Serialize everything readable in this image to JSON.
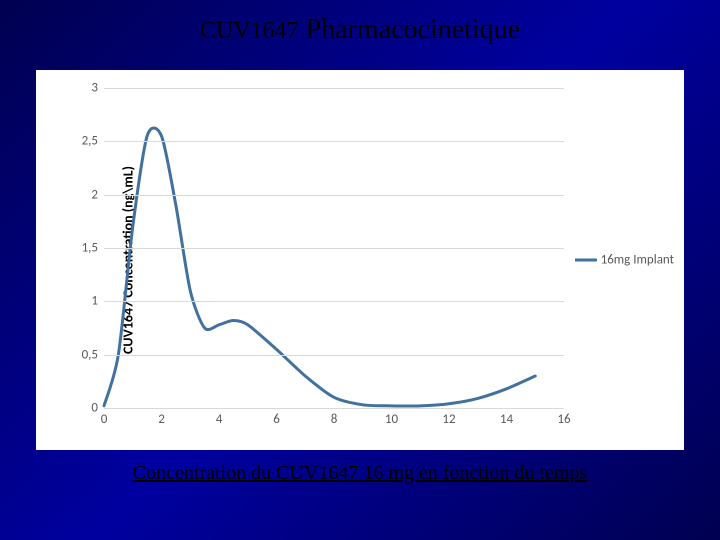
{
  "title": {
    "part1": "CUV1647",
    "part2": "Pharmacocinetique"
  },
  "chart": {
    "type": "line",
    "ylabel": "CUV1647 Concentration (ng\\mL)",
    "ylim": [
      0,
      3
    ],
    "ytick_step": 0.5,
    "yticks": [
      0,
      0.5,
      1,
      1.5,
      2,
      2.5,
      3
    ],
    "ytick_labels": [
      "0",
      "0,5",
      "1",
      "1,5",
      "2",
      "2,5",
      "3"
    ],
    "xlim": [
      0,
      16
    ],
    "xtick_step": 2,
    "xticks": [
      0,
      2,
      4,
      6,
      8,
      10,
      12,
      14,
      16
    ],
    "xtick_labels": [
      "0",
      "2",
      "4",
      "6",
      "8",
      "10",
      "12",
      "14",
      "16"
    ],
    "series": [
      {
        "name": "16mg Implant",
        "color": "#41719c",
        "line_width": 3,
        "x": [
          0,
          0.5,
          1,
          1.5,
          2,
          2.5,
          3,
          3.5,
          4,
          4.5,
          5,
          6,
          7,
          8,
          9,
          10,
          11,
          12,
          13,
          14,
          15
        ],
        "y": [
          0.02,
          0.5,
          1.7,
          2.55,
          2.55,
          1.9,
          1.1,
          0.75,
          0.78,
          0.82,
          0.78,
          0.55,
          0.3,
          0.1,
          0.03,
          0.02,
          0.02,
          0.04,
          0.09,
          0.18,
          0.3
        ]
      }
    ],
    "background_color": "#ffffff",
    "grid_color": "#d9d9d9",
    "tick_label_color": "#595959",
    "tick_label_fontsize": 13,
    "ylabel_fontsize": 14,
    "ylabel_fontweight": "bold",
    "legend_position": "right"
  },
  "caption": "Concentration du CUV1647 16 mg en fonction du temps"
}
